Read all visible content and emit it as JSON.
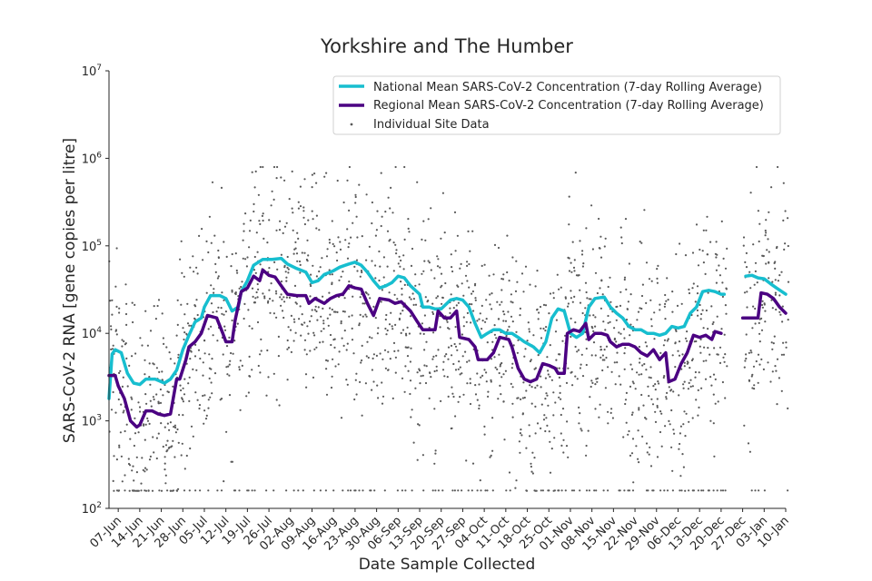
{
  "chart_data": {
    "type": "line",
    "title": "Yorkshire and The Humber",
    "xlabel": "Date Sample Collected",
    "ylabel": "SARS-CoV-2 RNA [gene copies per litre]",
    "yscale": "log",
    "ylim": [
      100,
      10000000
    ],
    "y_ticks": [
      {
        "value": 100,
        "base": "10",
        "exp": "2"
      },
      {
        "value": 1000,
        "base": "10",
        "exp": "3"
      },
      {
        "value": 10000,
        "base": "10",
        "exp": "4"
      },
      {
        "value": 100000,
        "base": "10",
        "exp": "5"
      },
      {
        "value": 1000000,
        "base": "10",
        "exp": "6"
      },
      {
        "value": 10000000,
        "base": "10",
        "exp": "7"
      }
    ],
    "x_tick_labels": [
      "07-Jun",
      "14-Jun",
      "21-Jun",
      "28-Jun",
      "05-Jul",
      "12-Jul",
      "19-Jul",
      "26-Jul",
      "02-Aug",
      "09-Aug",
      "16-Aug",
      "23-Aug",
      "30-Aug",
      "06-Sep",
      "13-Sep",
      "20-Sep",
      "27-Sep",
      "04-Oct",
      "11-Oct",
      "18-Oct",
      "25-Oct",
      "01-Nov",
      "08-Nov",
      "15-Nov",
      "22-Nov",
      "29-Nov",
      "06-Dec",
      "13-Dec",
      "20-Dec",
      "27-Dec",
      "03-Jan",
      "10-Jan"
    ],
    "x_tick_days": [
      0,
      7,
      14,
      21,
      28,
      35,
      42,
      49,
      56,
      63,
      70,
      77,
      84,
      91,
      98,
      105,
      112,
      119,
      126,
      133,
      140,
      147,
      154,
      161,
      168,
      175,
      182,
      189,
      196,
      203,
      210,
      217
    ],
    "xlim_days": [
      -3,
      217
    ],
    "legend_position": "upper right",
    "grid": false,
    "series": [
      {
        "name": "National Mean SARS-CoV-2 Concentration (7-day Rolling Average)",
        "color": "#17becf",
        "style": "line",
        "points": [
          [
            -3,
            1800
          ],
          [
            -2,
            5800
          ],
          [
            -1,
            6500
          ],
          [
            1,
            6000
          ],
          [
            3,
            3500
          ],
          [
            5,
            2700
          ],
          [
            7,
            2600
          ],
          [
            9,
            3000
          ],
          [
            12,
            3000
          ],
          [
            14,
            2800
          ],
          [
            15,
            2700
          ],
          [
            17,
            3000
          ],
          [
            19,
            3800
          ],
          [
            21,
            6500
          ],
          [
            23,
            9500
          ],
          [
            25,
            13500
          ],
          [
            27,
            15000
          ],
          [
            28,
            20000
          ],
          [
            30,
            27000
          ],
          [
            33,
            27000
          ],
          [
            35,
            25000
          ],
          [
            37,
            18000
          ],
          [
            39,
            20000
          ],
          [
            40,
            30000
          ],
          [
            42,
            40000
          ],
          [
            44,
            60000
          ],
          [
            47,
            70000
          ],
          [
            50,
            70000
          ],
          [
            53,
            72000
          ],
          [
            55,
            62000
          ],
          [
            58,
            55000
          ],
          [
            61,
            50000
          ],
          [
            63,
            38000
          ],
          [
            65,
            40000
          ],
          [
            67,
            47000
          ],
          [
            70,
            52000
          ],
          [
            72,
            57000
          ],
          [
            75,
            62000
          ],
          [
            77,
            65000
          ],
          [
            79,
            60000
          ],
          [
            81,
            50000
          ],
          [
            83,
            40000
          ],
          [
            85,
            33000
          ],
          [
            87,
            35000
          ],
          [
            89,
            38000
          ],
          [
            91,
            45000
          ],
          [
            93,
            43000
          ],
          [
            95,
            35000
          ],
          [
            98,
            28000
          ],
          [
            99,
            20000
          ],
          [
            101,
            20000
          ],
          [
            103,
            19000
          ],
          [
            105,
            19000
          ],
          [
            108,
            24000
          ],
          [
            110,
            25000
          ],
          [
            112,
            24000
          ],
          [
            114,
            20000
          ],
          [
            116,
            13000
          ],
          [
            118,
            9000
          ],
          [
            120,
            10000
          ],
          [
            122,
            11000
          ],
          [
            124,
            11000
          ],
          [
            126,
            10000
          ],
          [
            128,
            10000
          ],
          [
            130,
            9000
          ],
          [
            132,
            8000
          ],
          [
            135,
            7000
          ],
          [
            137,
            6000
          ],
          [
            139,
            8000
          ],
          [
            141,
            15000
          ],
          [
            143,
            19000
          ],
          [
            145,
            18000
          ],
          [
            147,
            10000
          ],
          [
            149,
            9000
          ],
          [
            151,
            10000
          ],
          [
            153,
            20000
          ],
          [
            155,
            25000
          ],
          [
            158,
            26000
          ],
          [
            160,
            20000
          ],
          [
            162,
            17000
          ],
          [
            164,
            15000
          ],
          [
            166,
            12000
          ],
          [
            168,
            11000
          ],
          [
            170,
            11000
          ],
          [
            172,
            10000
          ],
          [
            174,
            10000
          ],
          [
            176,
            9500
          ],
          [
            178,
            10000
          ],
          [
            180,
            12000
          ],
          [
            182,
            11500
          ],
          [
            184,
            12000
          ],
          [
            186,
            17000
          ],
          [
            188,
            20000
          ],
          [
            190,
            30000
          ],
          [
            192,
            31000
          ],
          [
            194,
            30000
          ],
          [
            196,
            28000
          ],
          [
            197,
            28000
          ],
          null,
          [
            204,
            45000
          ],
          [
            206,
            46000
          ],
          [
            208,
            43000
          ],
          [
            210,
            42000
          ],
          [
            212,
            37000
          ],
          [
            214,
            33000
          ],
          [
            217,
            28000
          ]
        ]
      },
      {
        "name": "Regional Mean SARS-CoV-2 Concentration (7-day Rolling Average)",
        "color": "#4b0082",
        "style": "line",
        "points": [
          [
            -3,
            3300
          ],
          [
            -1,
            3300
          ],
          [
            0,
            2500
          ],
          [
            2,
            1800
          ],
          [
            4,
            1000
          ],
          [
            6,
            850
          ],
          [
            7,
            900
          ],
          [
            9,
            1300
          ],
          [
            11,
            1300
          ],
          [
            13,
            1200
          ],
          [
            15,
            1150
          ],
          [
            17,
            1200
          ],
          [
            19,
            3000
          ],
          [
            20,
            3000
          ],
          [
            22,
            5000
          ],
          [
            23,
            7000
          ],
          [
            25,
            8000
          ],
          [
            27,
            10000
          ],
          [
            29,
            16000
          ],
          [
            32,
            15000
          ],
          [
            34,
            10000
          ],
          [
            35,
            8000
          ],
          [
            37,
            8000
          ],
          [
            38,
            14000
          ],
          [
            40,
            30000
          ],
          [
            42,
            33000
          ],
          [
            44,
            45000
          ],
          [
            46,
            40000
          ],
          [
            47,
            53000
          ],
          [
            49,
            46000
          ],
          [
            51,
            44000
          ],
          [
            53,
            35000
          ],
          [
            55,
            28000
          ],
          [
            58,
            27000
          ],
          [
            61,
            27000
          ],
          [
            62,
            22000
          ],
          [
            64,
            25000
          ],
          [
            67,
            22000
          ],
          [
            69,
            25000
          ],
          [
            71,
            27000
          ],
          [
            73,
            28000
          ],
          [
            75,
            35000
          ],
          [
            77,
            33000
          ],
          [
            79,
            32000
          ],
          [
            81,
            22000
          ],
          [
            83,
            16000
          ],
          [
            85,
            25000
          ],
          [
            88,
            24000
          ],
          [
            90,
            22000
          ],
          [
            92,
            23000
          ],
          [
            95,
            18000
          ],
          [
            97,
            14000
          ],
          [
            99,
            11000
          ],
          [
            101,
            11000
          ],
          [
            103,
            11000
          ],
          [
            104,
            18000
          ],
          [
            106,
            15000
          ],
          [
            108,
            15000
          ],
          [
            110,
            18000
          ],
          [
            111,
            9000
          ],
          [
            114,
            8500
          ],
          [
            116,
            7000
          ],
          [
            117,
            5000
          ],
          [
            120,
            5000
          ],
          [
            122,
            6000
          ],
          [
            124,
            9000
          ],
          [
            127,
            8500
          ],
          [
            128,
            7000
          ],
          [
            130,
            4000
          ],
          [
            132,
            3000
          ],
          [
            134,
            2800
          ],
          [
            136,
            3000
          ],
          [
            138,
            4500
          ],
          [
            140,
            4300
          ],
          [
            142,
            4000
          ],
          [
            143,
            3500
          ],
          [
            145,
            3500
          ],
          [
            146,
            10000
          ],
          [
            148,
            11000
          ],
          [
            150,
            10500
          ],
          [
            152,
            13000
          ],
          [
            153,
            8500
          ],
          [
            155,
            10000
          ],
          [
            157,
            10000
          ],
          [
            159,
            9500
          ],
          [
            160,
            8000
          ],
          [
            162,
            7000
          ],
          [
            164,
            7500
          ],
          [
            166,
            7500
          ],
          [
            168,
            7000
          ],
          [
            170,
            6000
          ],
          [
            172,
            5500
          ],
          [
            174,
            6500
          ],
          [
            176,
            5000
          ],
          [
            178,
            6000
          ],
          [
            179,
            2800
          ],
          [
            181,
            3000
          ],
          [
            183,
            4500
          ],
          [
            185,
            6000
          ],
          [
            187,
            9500
          ],
          [
            189,
            9000
          ],
          [
            191,
            9500
          ],
          [
            193,
            8500
          ],
          [
            194,
            10500
          ],
          [
            196,
            10000
          ],
          null,
          [
            203,
            15000
          ],
          [
            208,
            15000
          ],
          [
            209,
            29000
          ],
          [
            211,
            28000
          ],
          [
            213,
            25000
          ],
          [
            215,
            20000
          ],
          [
            217,
            17000
          ]
        ]
      },
      {
        "name": "Individual Site Data",
        "color": "#595959",
        "style": "scatter"
      }
    ]
  }
}
